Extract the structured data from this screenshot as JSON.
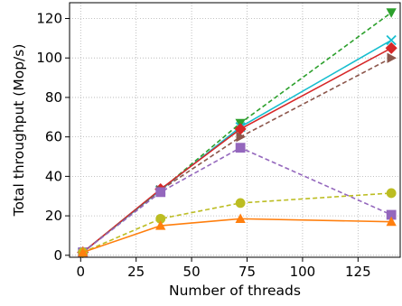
{
  "chart_data": {
    "type": "line",
    "title": "",
    "xlabel": "Number of threads",
    "ylabel": "Total throughput (Mop/s)",
    "xlim": [
      -5,
      144
    ],
    "ylim": [
      -1,
      128
    ],
    "xticks": [
      0,
      25,
      50,
      75,
      100,
      125
    ],
    "yticks": [
      0,
      20,
      40,
      60,
      80,
      100,
      120
    ],
    "grid": true,
    "legend": "none",
    "series": [
      {
        "color": "#2ca02c",
        "line": "dashed",
        "marker": "triangle-down",
        "x": [
          1,
          36,
          72,
          140
        ],
        "y": [
          1.5,
          33,
          67,
          123
        ]
      },
      {
        "color": "#17becf",
        "line": "solid",
        "marker": "x",
        "x": [
          1,
          36,
          72,
          140
        ],
        "y": [
          1.5,
          33,
          65,
          109
        ]
      },
      {
        "color": "#d62728",
        "line": "solid",
        "marker": "diamond",
        "x": [
          1,
          36,
          72,
          140
        ],
        "y": [
          1.5,
          33.5,
          64,
          105
        ]
      },
      {
        "color": "#8c564b",
        "line": "dashed",
        "marker": "triangle-right",
        "x": [
          1,
          36,
          72,
          140
        ],
        "y": [
          1.5,
          33,
          60,
          100
        ]
      },
      {
        "color": "#9467bd",
        "line": "dashed",
        "marker": "square",
        "x": [
          1,
          36,
          72,
          140
        ],
        "y": [
          1.5,
          32,
          54.5,
          20.5
        ]
      },
      {
        "color": "#bcbd22",
        "line": "dashed",
        "marker": "circle",
        "x": [
          1,
          36,
          72,
          140
        ],
        "y": [
          1.5,
          18.5,
          26.5,
          31.5
        ]
      },
      {
        "color": "#ff7f0e",
        "line": "solid",
        "marker": "triangle-up",
        "x": [
          1,
          36,
          72,
          140
        ],
        "y": [
          1.5,
          15,
          18.5,
          17
        ]
      }
    ]
  }
}
